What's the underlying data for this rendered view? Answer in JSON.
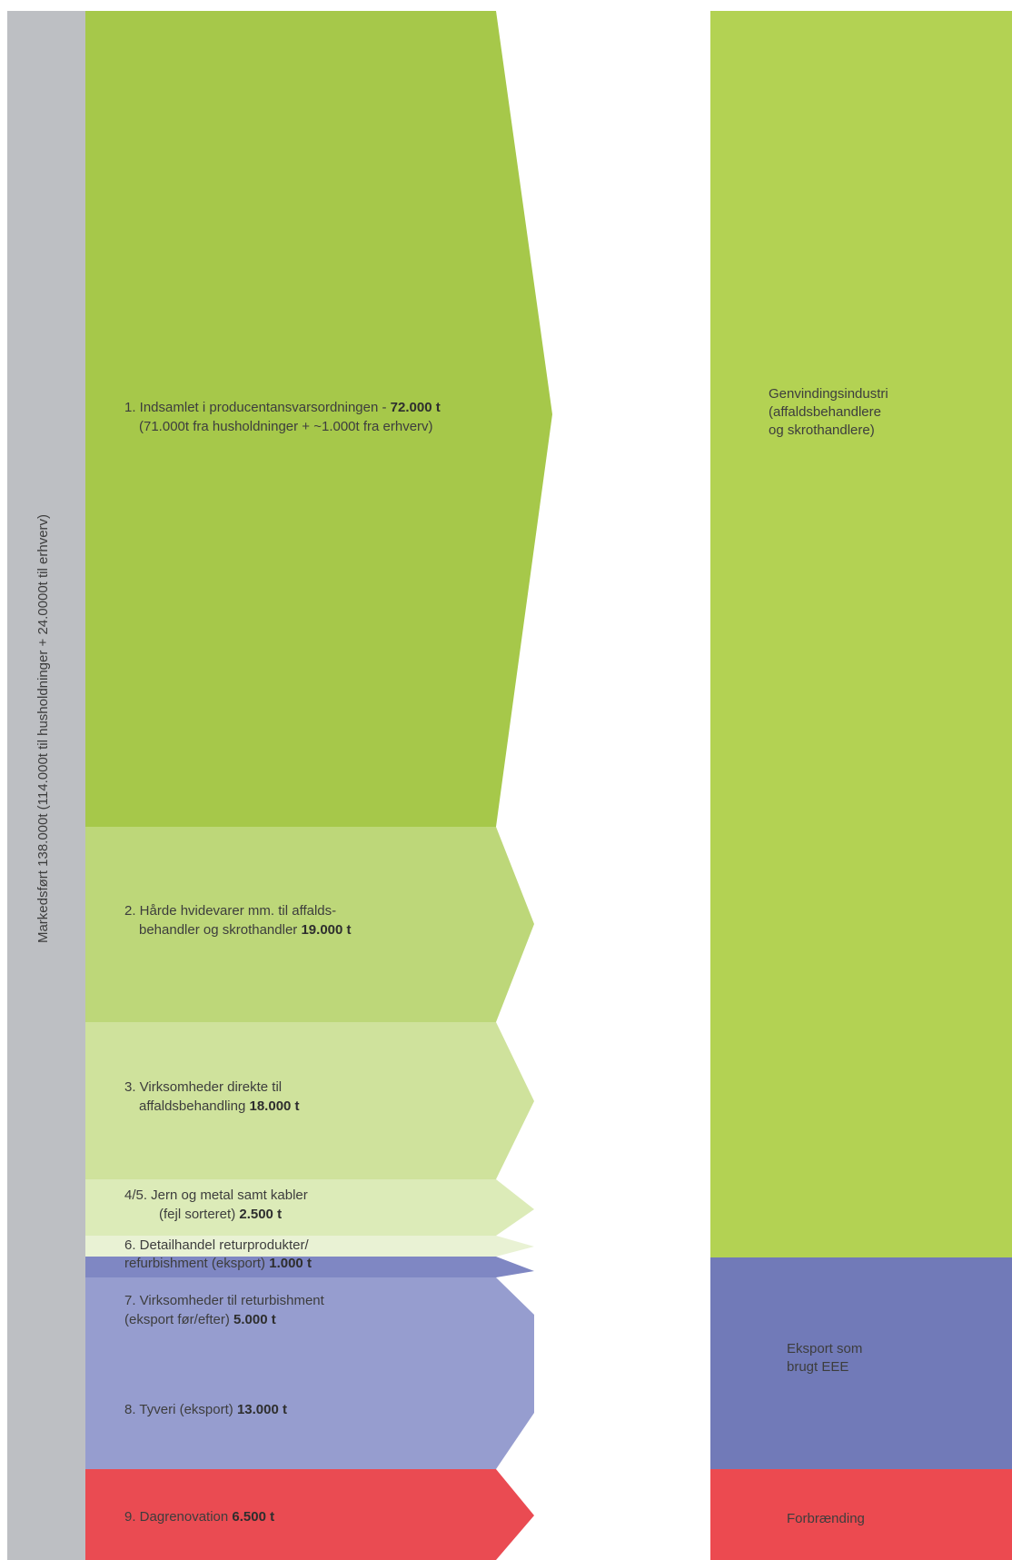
{
  "source_bar": {
    "label": "Markedsført 138.000t (114.000t til husholdninger + 24.0000t til erhverv)",
    "color": "#bdbfc3"
  },
  "flows": [
    {
      "id": "f1",
      "line1": "1. Indsamlet i producentansvarsordningen - ",
      "value": "72.000 t",
      "line2": "(71.000t fra husholdninger + ~1.000t fra erhverv)",
      "color": "#a6c84a"
    },
    {
      "id": "f2",
      "line1": "2. Hårde hvidevarer mm. til affalds-",
      "line2": "behandler og skrothandler ",
      "value": "19.000 t",
      "color": "#bdd779"
    },
    {
      "id": "f3",
      "line1": "3. Virksomheder direkte til",
      "line2": "affaldsbehandling ",
      "value": "18.000 t",
      "color": "#cfe29c"
    },
    {
      "id": "f45",
      "line1": "4/5. Jern og metal samt kabler",
      "line2": "(fejl sorteret) ",
      "value": "2.500 t",
      "color": "#dcebb8"
    },
    {
      "id": "f6",
      "line1": "6. Detailhandel returprodukter/",
      "line2": "refurbishment (eksport) ",
      "value": "1.000 t",
      "color": "#e9f2d4"
    },
    {
      "id": "f7",
      "line1": "7. Virksomheder til returbishment",
      "line2": "(eksport før/efter) ",
      "value": "5.000 t",
      "color": "#7f87c3"
    },
    {
      "id": "f8",
      "line1": "8. Tyveri (eksport) ",
      "value": "13.000 t",
      "color": "#969dcf"
    },
    {
      "id": "f9",
      "line1": "9. Dagrenovation ",
      "value": "6.500 t",
      "color": "#ea4b52"
    }
  ],
  "destinations": [
    {
      "id": "d1",
      "lines": [
        "Genvindingsindustri",
        "(affaldsbehandlere",
        "og skrothandlere)"
      ],
      "color": "#b3d253"
    },
    {
      "id": "d2",
      "lines": [
        "Eksport som",
        "brugt EEE"
      ],
      "color": "#717ab8"
    },
    {
      "id": "d3",
      "lines": [
        "Forbrænding"
      ],
      "color": "#ec4a50"
    }
  ]
}
